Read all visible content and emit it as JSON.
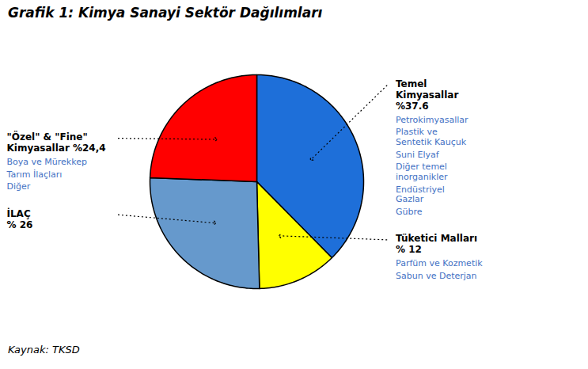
{
  "chart_data": {
    "type": "pie",
    "title": "Grafik 1: Kimya Sanayi Sektör Dağılımları",
    "caption": "Kaynak: TKSD",
    "categories": [
      "Temel\nKimyasallar\n%37.6",
      "Tüketici Malları\n% 12",
      "İLAÇ\n% 26",
      "\"Özel\" & \"Fine\"\nKimyasallar %24,4"
    ],
    "values": [
      37.6,
      12,
      26,
      24.4
    ],
    "colors": [
      "#1E6FD9",
      "#FFFF00",
      "#6699CC",
      "#FF0000"
    ],
    "annotations": [
      {
        "category": "Temel\nKimyasallar\n%37.6",
        "color": "#4472C4",
        "texts": [
          "Petrokimyasallar",
          "Plastik ve\nSentetik Kauçuk",
          "Suni Elyaf",
          "Diğer temel\ninorganikler",
          "Endüstriyel\nGazlar",
          "Gübre"
        ]
      },
      {
        "category": "Tüketici Malları\n% 12",
        "color": "#4472C4",
        "texts": [
          "Parfüm ve Kozmetik",
          "Sabun ve Deterjan"
        ]
      },
      {
        "category": "\"Özel\" & \"Fine\"\nKimyasallar %24,4",
        "color": "#4472C4",
        "texts": [
          "Boya ve Mürekkep",
          "Tarım İlaçları",
          "Diğer"
        ]
      }
    ]
  }
}
